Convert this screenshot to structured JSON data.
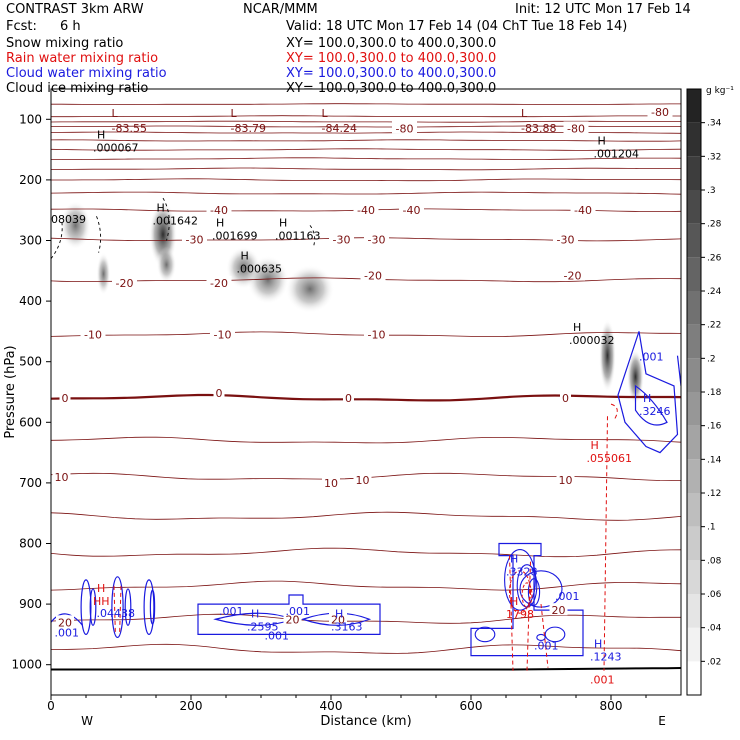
{
  "header": {
    "model": "CONTRAST   3km ARW",
    "center": "NCAR/MMM",
    "init": "Init: 12 UTC Mon 17 Feb 14",
    "fcst_label": "Fcst:",
    "fcst_value": "6 h",
    "valid": "Valid: 18 UTC Mon 17 Feb 14 (04 ChT Tue 18 Feb 14)"
  },
  "fields": [
    {
      "name": "Snow mixing ratio",
      "xsec": "XY= 100.0,300.0 to 400.0,300.0",
      "color": "#000000"
    },
    {
      "name": "Rain water mixing ratio",
      "xsec": "XY= 100.0,300.0 to 400.0,300.0",
      "color": "#e01010"
    },
    {
      "name": "Cloud water mixing ratio",
      "xsec": "XY= 100.0,300.0 to 400.0,300.0",
      "color": "#1a1adf"
    },
    {
      "name": "Cloud ice mixing ratio",
      "xsec": "XY= 100.0,300.0 to 400.0,300.0",
      "color": "#000000"
    }
  ],
  "chart_data": {
    "type": "heatmap",
    "xlabel": "Distance (km)",
    "ylabel": "Pressure (hPa)",
    "xlim": [
      0,
      900
    ],
    "ylim": [
      1050,
      50
    ],
    "xticks": [
      0,
      200,
      400,
      600,
      800
    ],
    "yticks": [
      100,
      200,
      300,
      400,
      500,
      600,
      700,
      800,
      900,
      1000
    ],
    "x_end_labels": {
      "left": "W",
      "right": "E"
    },
    "colorbar": {
      "unit": "g kg⁻¹",
      "ticks": [
        ".02",
        ".04",
        ".06",
        ".08",
        ".1",
        ".12",
        ".14",
        ".16",
        ".18",
        ".2",
        ".22",
        ".24",
        ".26",
        ".28",
        ".3",
        ".32",
        ".34"
      ]
    },
    "temperature_contours": [
      {
        "level": -80,
        "label": "-80"
      },
      {
        "level": -40,
        "label": "-40"
      },
      {
        "level": -30,
        "label": "-30"
      },
      {
        "level": -20,
        "label": "-20"
      },
      {
        "level": -10,
        "label": "-10"
      },
      {
        "level": 0,
        "label": "0"
      },
      {
        "level": 10,
        "label": "10"
      },
      {
        "level": 20,
        "label": "20"
      }
    ],
    "lows": [
      {
        "x": 95,
        "p": 108,
        "label": "-83.55"
      },
      {
        "x": 265,
        "p": 108,
        "label": "-83.79"
      },
      {
        "x": 395,
        "p": 108,
        "label": "-84.24"
      },
      {
        "x": 680,
        "p": 108,
        "label": "-83.88"
      }
    ],
    "contour_labels": [
      {
        "x": 505,
        "p": 115,
        "text": "-80",
        "color": "#7a1010"
      },
      {
        "x": 750,
        "p": 115,
        "text": "-80",
        "color": "#7a1010"
      },
      {
        "x": 870,
        "p": 88,
        "text": "-80",
        "color": "#7a1010"
      },
      {
        "x": 240,
        "p": 250,
        "text": "-40",
        "color": "#7a1010"
      },
      {
        "x": 450,
        "p": 250,
        "text": "-40",
        "color": "#7a1010"
      },
      {
        "x": 515,
        "p": 250,
        "text": "-40",
        "color": "#7a1010"
      },
      {
        "x": 760,
        "p": 250,
        "text": "-40",
        "color": "#7a1010"
      },
      {
        "x": 205,
        "p": 298,
        "text": "-30",
        "color": "#7a1010"
      },
      {
        "x": 415,
        "p": 298,
        "text": "-30",
        "color": "#7a1010"
      },
      {
        "x": 465,
        "p": 298,
        "text": "-30",
        "color": "#7a1010"
      },
      {
        "x": 735,
        "p": 298,
        "text": "-30",
        "color": "#7a1010"
      },
      {
        "x": 105,
        "p": 370,
        "text": "-20",
        "color": "#7a1010"
      },
      {
        "x": 240,
        "p": 370,
        "text": "-20",
        "color": "#7a1010"
      },
      {
        "x": 460,
        "p": 358,
        "text": "-20",
        "color": "#7a1010"
      },
      {
        "x": 745,
        "p": 358,
        "text": "-20",
        "color": "#7a1010"
      },
      {
        "x": 60,
        "p": 455,
        "text": "-10",
        "color": "#7a1010"
      },
      {
        "x": 245,
        "p": 455,
        "text": "-10",
        "color": "#7a1010"
      },
      {
        "x": 465,
        "p": 455,
        "text": "-10",
        "color": "#7a1010"
      },
      {
        "x": 20,
        "p": 560,
        "text": "0",
        "color": "#7a1010"
      },
      {
        "x": 240,
        "p": 552,
        "text": "0",
        "color": "#7a1010"
      },
      {
        "x": 425,
        "p": 560,
        "text": "0",
        "color": "#7a1010"
      },
      {
        "x": 735,
        "p": 560,
        "text": "0",
        "color": "#7a1010"
      },
      {
        "x": 15,
        "p": 690,
        "text": "10",
        "color": "#7a1010"
      },
      {
        "x": 400,
        "p": 700,
        "text": "10",
        "color": "#7a1010"
      },
      {
        "x": 445,
        "p": 695,
        "text": "10",
        "color": "#7a1010"
      },
      {
        "x": 735,
        "p": 695,
        "text": "10",
        "color": "#7a1010"
      },
      {
        "x": 20,
        "p": 930,
        "text": "20",
        "color": "#7a1010"
      },
      {
        "x": 345,
        "p": 925,
        "text": "20",
        "color": "#7a1010"
      },
      {
        "x": 410,
        "p": 925,
        "text": "20",
        "color": "#7a1010"
      },
      {
        "x": 725,
        "p": 910,
        "text": "20",
        "color": "#7a1010"
      }
    ],
    "maxima": [
      {
        "x": 60,
        "p": 140,
        "H": true,
        "text": ".000067",
        "color": "#000000"
      },
      {
        "x": 775,
        "p": 150,
        "H": true,
        "text": ".001204",
        "color": "#000000"
      },
      {
        "x": 0,
        "p": 258,
        "H": false,
        "text": "08039",
        "color": "#000000"
      },
      {
        "x": 145,
        "p": 260,
        "H": true,
        "text": ".001642",
        "color": "#000000"
      },
      {
        "x": 230,
        "p": 285,
        "H": true,
        "text": ".001699",
        "color": "#000000"
      },
      {
        "x": 320,
        "p": 285,
        "H": true,
        "text": ".001163",
        "color": "#000000"
      },
      {
        "x": 265,
        "p": 340,
        "H": true,
        "text": ".000635",
        "color": "#000000"
      },
      {
        "x": 740,
        "p": 458,
        "H": true,
        "text": ".000032",
        "color": "#000000"
      },
      {
        "x": 840,
        "p": 485,
        "H": false,
        "text": ".001",
        "color": "#1a1adf"
      },
      {
        "x": 840,
        "p": 575,
        "H": true,
        "text": ".3246",
        "color": "#1a1adf"
      },
      {
        "x": 765,
        "p": 652,
        "H": true,
        "text": ".055061",
        "color": "#e01010"
      },
      {
        "x": 60,
        "p": 888,
        "H": true,
        "text": "HH",
        "color": "#e01010"
      },
      {
        "x": 65,
        "p": 908,
        "H": false,
        "text": ".04438",
        "color": "#1a1adf"
      },
      {
        "x": 5,
        "p": 940,
        "H": false,
        "text": ".001",
        "color": "#1a1adf"
      },
      {
        "x": 240,
        "p": 905,
        "H": false,
        "text": ".001",
        "color": "#1a1adf"
      },
      {
        "x": 335,
        "p": 905,
        "H": false,
        "text": ".001",
        "color": "#1a1adf"
      },
      {
        "x": 305,
        "p": 945,
        "H": false,
        "text": ".001",
        "color": "#1a1adf"
      },
      {
        "x": 280,
        "p": 930,
        "H": true,
        "text": ".2595",
        "color": "#1a1adf"
      },
      {
        "x": 400,
        "p": 930,
        "H": true,
        "text": ".3163",
        "color": "#1a1adf"
      },
      {
        "x": 650,
        "p": 840,
        "H": true,
        "text": ".3328",
        "color": "#1a1adf"
      },
      {
        "x": 650,
        "p": 910,
        "H": true,
        "text": "1798",
        "color": "#e01010"
      },
      {
        "x": 720,
        "p": 880,
        "H": false,
        "text": ".001",
        "color": "#1a1adf"
      },
      {
        "x": 690,
        "p": 962,
        "H": false,
        "text": ".001",
        "color": "#1a1adf"
      },
      {
        "x": 770,
        "p": 980,
        "H": true,
        "text": ".1243",
        "color": "#1a1adf"
      },
      {
        "x": 770,
        "p": 1018,
        "H": false,
        "text": ".001",
        "color": "#e01010"
      }
    ]
  }
}
